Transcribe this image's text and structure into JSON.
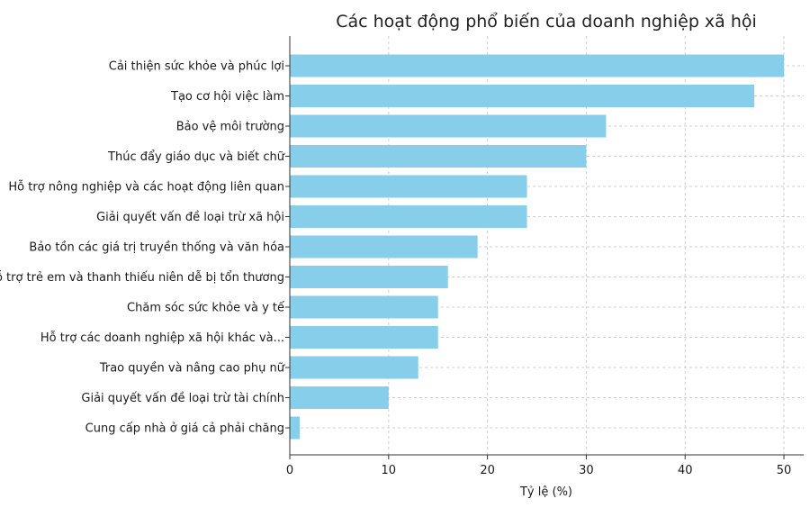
{
  "chart_data": {
    "type": "bar",
    "orientation": "horizontal",
    "title": "Các hoạt động phổ biến của doanh nghiệp xã hội",
    "xlabel": "Tỷ lệ (%)",
    "ylabel": "",
    "xlim": [
      0,
      52
    ],
    "xticks": [
      "0",
      "10",
      "20",
      "30",
      "40",
      "50"
    ],
    "grid": true,
    "bar_color": "#87CEEB",
    "categories": [
      "Cải thiện sức khỏe và phúc lợi",
      "Tạo cơ hội việc làm",
      "Bảo vệ môi trường",
      "Thúc đẩy giáo dục và biết chữ",
      "Hỗ trợ nông nghiệp và các hoạt động liên quan",
      "Giải quyết vấn đề loại trừ xã hội",
      "Bảo tồn các giá trị truyền thống và văn hóa",
      "Hỗ trợ trẻ em và thanh thiếu niên dễ bị tổn thương",
      "Chăm sóc sức khỏe và y tế",
      "Hỗ trợ các doanh nghiệp xã hội khác và...",
      "Trao quyền và nâng cao phụ nữ",
      "Giải quyết vấn đề loại trừ tài chính",
      "Cung cấp nhà ở giá cả phải chăng"
    ],
    "values": [
      50,
      47,
      32,
      30,
      24,
      24,
      19,
      16,
      15,
      15,
      13,
      10,
      1
    ]
  }
}
